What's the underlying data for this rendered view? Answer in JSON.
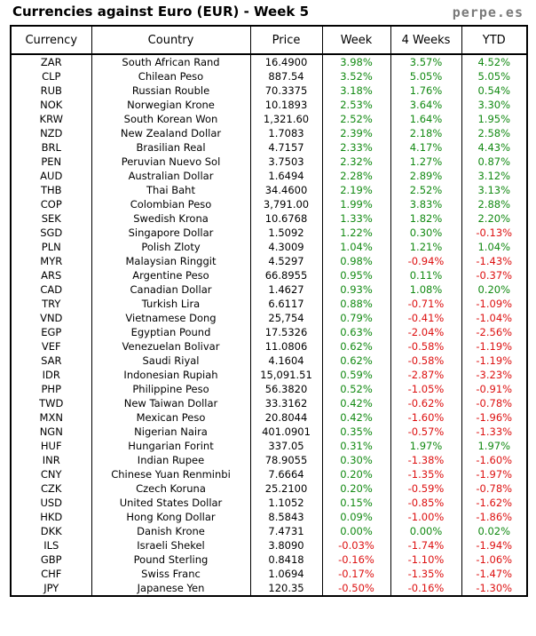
{
  "header": {
    "title": "Currencies against Euro (EUR) - Week 5",
    "brand": "perpe.es"
  },
  "columns": [
    "Currency",
    "Country",
    "Price",
    "Week",
    "4 Weeks",
    "YTD"
  ],
  "colors": {
    "positive": "#138a13",
    "negative": "#dd1111"
  },
  "rows": [
    {
      "code": "ZAR",
      "country": "South African Rand",
      "price": "16.4900",
      "week": "3.98%",
      "w4": "3.57%",
      "ytd": "4.52%"
    },
    {
      "code": "CLP",
      "country": "Chilean Peso",
      "price": "887.54",
      "week": "3.52%",
      "w4": "5.05%",
      "ytd": "5.05%"
    },
    {
      "code": "RUB",
      "country": "Russian Rouble",
      "price": "70.3375",
      "week": "3.18%",
      "w4": "1.76%",
      "ytd": "0.54%"
    },
    {
      "code": "NOK",
      "country": "Norwegian Krone",
      "price": "10.1893",
      "week": "2.53%",
      "w4": "3.64%",
      "ytd": "3.30%"
    },
    {
      "code": "KRW",
      "country": "South Korean Won",
      "price": "1,321.60",
      "week": "2.52%",
      "w4": "1.64%",
      "ytd": "1.95%"
    },
    {
      "code": "NZD",
      "country": "New Zealand Dollar",
      "price": "1.7083",
      "week": "2.39%",
      "w4": "2.18%",
      "ytd": "2.58%"
    },
    {
      "code": "BRL",
      "country": "Brasilian Real",
      "price": "4.7157",
      "week": "2.33%",
      "w4": "4.17%",
      "ytd": "4.43%"
    },
    {
      "code": "PEN",
      "country": "Peruvian Nuevo Sol",
      "price": "3.7503",
      "week": "2.32%",
      "w4": "1.27%",
      "ytd": "0.87%"
    },
    {
      "code": "AUD",
      "country": "Australian Dollar",
      "price": "1.6494",
      "week": "2.28%",
      "w4": "2.89%",
      "ytd": "3.12%"
    },
    {
      "code": "THB",
      "country": "Thai Baht",
      "price": "34.4600",
      "week": "2.19%",
      "w4": "2.52%",
      "ytd": "3.13%"
    },
    {
      "code": "COP",
      "country": "Colombian Peso",
      "price": "3,791.00",
      "week": "1.99%",
      "w4": "3.83%",
      "ytd": "2.88%"
    },
    {
      "code": "SEK",
      "country": "Swedish Krona",
      "price": "10.6768",
      "week": "1.33%",
      "w4": "1.82%",
      "ytd": "2.20%"
    },
    {
      "code": "SGD",
      "country": "Singapore Dollar",
      "price": "1.5092",
      "week": "1.22%",
      "w4": "0.30%",
      "ytd": "-0.13%"
    },
    {
      "code": "PLN",
      "country": "Polish Zloty",
      "price": "4.3009",
      "week": "1.04%",
      "w4": "1.21%",
      "ytd": "1.04%"
    },
    {
      "code": "MYR",
      "country": "Malaysian Ringgit",
      "price": "4.5297",
      "week": "0.98%",
      "w4": "-0.94%",
      "ytd": "-1.43%"
    },
    {
      "code": "ARS",
      "country": "Argentine Peso",
      "price": "66.8955",
      "week": "0.95%",
      "w4": "0.11%",
      "ytd": "-0.37%"
    },
    {
      "code": "CAD",
      "country": "Canadian Dollar",
      "price": "1.4627",
      "week": "0.93%",
      "w4": "1.08%",
      "ytd": "0.20%"
    },
    {
      "code": "TRY",
      "country": "Turkish Lira",
      "price": "6.6117",
      "week": "0.88%",
      "w4": "-0.71%",
      "ytd": "-1.09%"
    },
    {
      "code": "VND",
      "country": "Vietnamese Dong",
      "price": "25,754",
      "week": "0.79%",
      "w4": "-0.41%",
      "ytd": "-1.04%"
    },
    {
      "code": "EGP",
      "country": "Egyptian Pound",
      "price": "17.5326",
      "week": "0.63%",
      "w4": "-2.04%",
      "ytd": "-2.56%"
    },
    {
      "code": "VEF",
      "country": "Venezuelan Bolivar",
      "price": "11.0806",
      "week": "0.62%",
      "w4": "-0.58%",
      "ytd": "-1.19%"
    },
    {
      "code": "SAR",
      "country": "Saudi Riyal",
      "price": "4.1604",
      "week": "0.62%",
      "w4": "-0.58%",
      "ytd": "-1.19%"
    },
    {
      "code": "IDR",
      "country": "Indonesian Rupiah",
      "price": "15,091.51",
      "week": "0.59%",
      "w4": "-2.87%",
      "ytd": "-3.23%"
    },
    {
      "code": "PHP",
      "country": "Philippine Peso",
      "price": "56.3820",
      "week": "0.52%",
      "w4": "-1.05%",
      "ytd": "-0.91%"
    },
    {
      "code": "TWD",
      "country": "New Taiwan Dollar",
      "price": "33.3162",
      "week": "0.42%",
      "w4": "-0.62%",
      "ytd": "-0.78%"
    },
    {
      "code": "MXN",
      "country": "Mexican Peso",
      "price": "20.8044",
      "week": "0.42%",
      "w4": "-1.60%",
      "ytd": "-1.96%"
    },
    {
      "code": "NGN",
      "country": "Nigerian Naira",
      "price": "401.0901",
      "week": "0.35%",
      "w4": "-0.57%",
      "ytd": "-1.33%"
    },
    {
      "code": "HUF",
      "country": "Hungarian Forint",
      "price": "337.05",
      "week": "0.31%",
      "w4": "1.97%",
      "ytd": "1.97%"
    },
    {
      "code": "INR",
      "country": "Indian Rupee",
      "price": "78.9055",
      "week": "0.30%",
      "w4": "-1.38%",
      "ytd": "-1.60%"
    },
    {
      "code": "CNY",
      "country": "Chinese Yuan Renminbi",
      "price": "7.6664",
      "week": "0.20%",
      "w4": "-1.35%",
      "ytd": "-1.97%"
    },
    {
      "code": "CZK",
      "country": "Czech Koruna",
      "price": "25.2100",
      "week": "0.20%",
      "w4": "-0.59%",
      "ytd": "-0.78%"
    },
    {
      "code": "USD",
      "country": "United States Dollar",
      "price": "1.1052",
      "week": "0.15%",
      "w4": "-0.85%",
      "ytd": "-1.62%"
    },
    {
      "code": "HKD",
      "country": "Hong Kong Dollar",
      "price": "8.5843",
      "week": "0.09%",
      "w4": "-1.00%",
      "ytd": "-1.86%"
    },
    {
      "code": "DKK",
      "country": "Danish Krone",
      "price": "7.4731",
      "week": "0.00%",
      "w4": "0.00%",
      "ytd": "0.02%"
    },
    {
      "code": "ILS",
      "country": "Israeli Shekel",
      "price": "3.8090",
      "week": "-0.03%",
      "w4": "-1.74%",
      "ytd": "-1.94%"
    },
    {
      "code": "GBP",
      "country": "Pound Sterling",
      "price": "0.8418",
      "week": "-0.16%",
      "w4": "-1.10%",
      "ytd": "-1.06%"
    },
    {
      "code": "CHF",
      "country": "Swiss Franc",
      "price": "1.0694",
      "week": "-0.17%",
      "w4": "-1.35%",
      "ytd": "-1.47%"
    },
    {
      "code": "JPY",
      "country": "Japanese Yen",
      "price": "120.35",
      "week": "-0.50%",
      "w4": "-0.16%",
      "ytd": "-1.30%"
    }
  ]
}
